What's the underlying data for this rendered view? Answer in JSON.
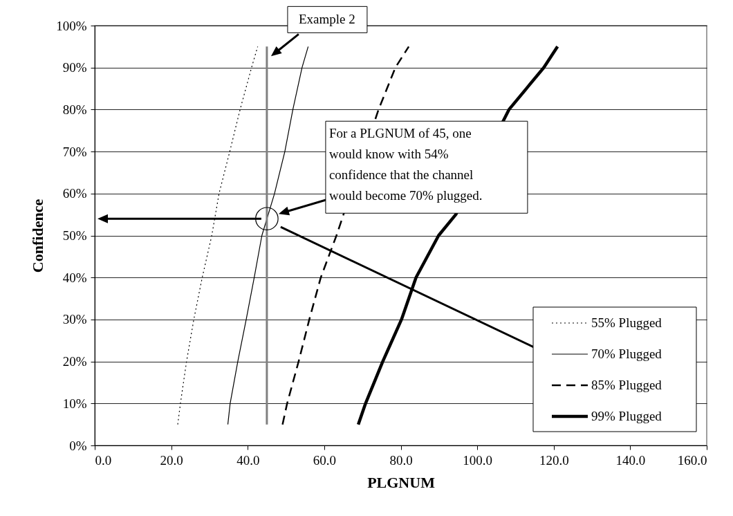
{
  "chart_data": {
    "type": "line",
    "xlabel": "PLGNUM",
    "ylabel": "Confidence",
    "xlim": [
      0,
      160
    ],
    "ylim": [
      0,
      100
    ],
    "xticks": [
      {
        "value": 0,
        "label": "0.0"
      },
      {
        "value": 20,
        "label": "20.0"
      },
      {
        "value": 40,
        "label": "40.0"
      },
      {
        "value": 60,
        "label": "60.0"
      },
      {
        "value": 80,
        "label": "80.0"
      },
      {
        "value": 100,
        "label": "100.0"
      },
      {
        "value": 120,
        "label": "120.0"
      },
      {
        "value": 140,
        "label": "140.0"
      },
      {
        "value": 160,
        "label": "160.0"
      }
    ],
    "yticks": [
      {
        "value": 0,
        "label": "0%"
      },
      {
        "value": 10,
        "label": "10%"
      },
      {
        "value": 20,
        "label": "20%"
      },
      {
        "value": 30,
        "label": "30%"
      },
      {
        "value": 40,
        "label": "40%"
      },
      {
        "value": 50,
        "label": "50%"
      },
      {
        "value": 60,
        "label": "60%"
      },
      {
        "value": 70,
        "label": "70%"
      },
      {
        "value": 80,
        "label": "80%"
      },
      {
        "value": 90,
        "label": "90%"
      },
      {
        "value": 100,
        "label": "100%"
      }
    ],
    "grid": "y",
    "legend": "bottom right",
    "marker": "none",
    "series": [
      {
        "name": "55% Plugged",
        "color": "#000000",
        "line_style": "dotted",
        "x": [
          21.7,
          22.4,
          24.0,
          25.9,
          28.1,
          30.6,
          32.5,
          35.3,
          38.0,
          41.0,
          42.6
        ],
        "values": [
          5,
          10,
          20,
          30,
          40,
          50,
          60,
          70,
          80,
          90,
          95
        ]
      },
      {
        "name": "70% Plugged",
        "color": "#000000",
        "line_style": "solid",
        "x": [
          34.8,
          35.4,
          37.4,
          39.6,
          41.7,
          43.7,
          47.0,
          49.7,
          51.8,
          54.2,
          55.8
        ],
        "values": [
          5,
          10,
          20,
          30,
          40,
          50,
          60,
          70,
          80,
          90,
          95
        ]
      },
      {
        "name": "85% Plugged",
        "color": "#000000",
        "line_style": "dashed",
        "x": [
          49.1,
          50.3,
          53.3,
          56.1,
          59.1,
          63.2,
          74.2,
          78.6,
          82.1
        ],
        "values": [
          5,
          10,
          20,
          30,
          40,
          50,
          80,
          90,
          95
        ]
      },
      {
        "name": "99% Plugged",
        "color": "#000000",
        "line_style": "solid",
        "x": [
          68.9,
          70.8,
          75.3,
          80.2,
          84.0,
          89.9,
          94.4,
          108.3,
          117.4,
          121.0
        ],
        "values": [
          5,
          10,
          20,
          30,
          40,
          50,
          55,
          80,
          90,
          95
        ]
      },
      {
        "color": "#808080",
        "line_style": "solid",
        "x": [
          45,
          45
        ],
        "values": [
          5,
          95
        ]
      },
      {
        "type": "scatter",
        "color": "#000000",
        "marker": "circle",
        "x": [
          45
        ],
        "values": [
          54
        ]
      }
    ],
    "annotations": [
      {
        "text": "Example 2",
        "x": 45,
        "y": 95
      },
      "For a PLGNUM of 45, one would know with 54% confidence that the channel would become 70% plugged."
    ]
  }
}
